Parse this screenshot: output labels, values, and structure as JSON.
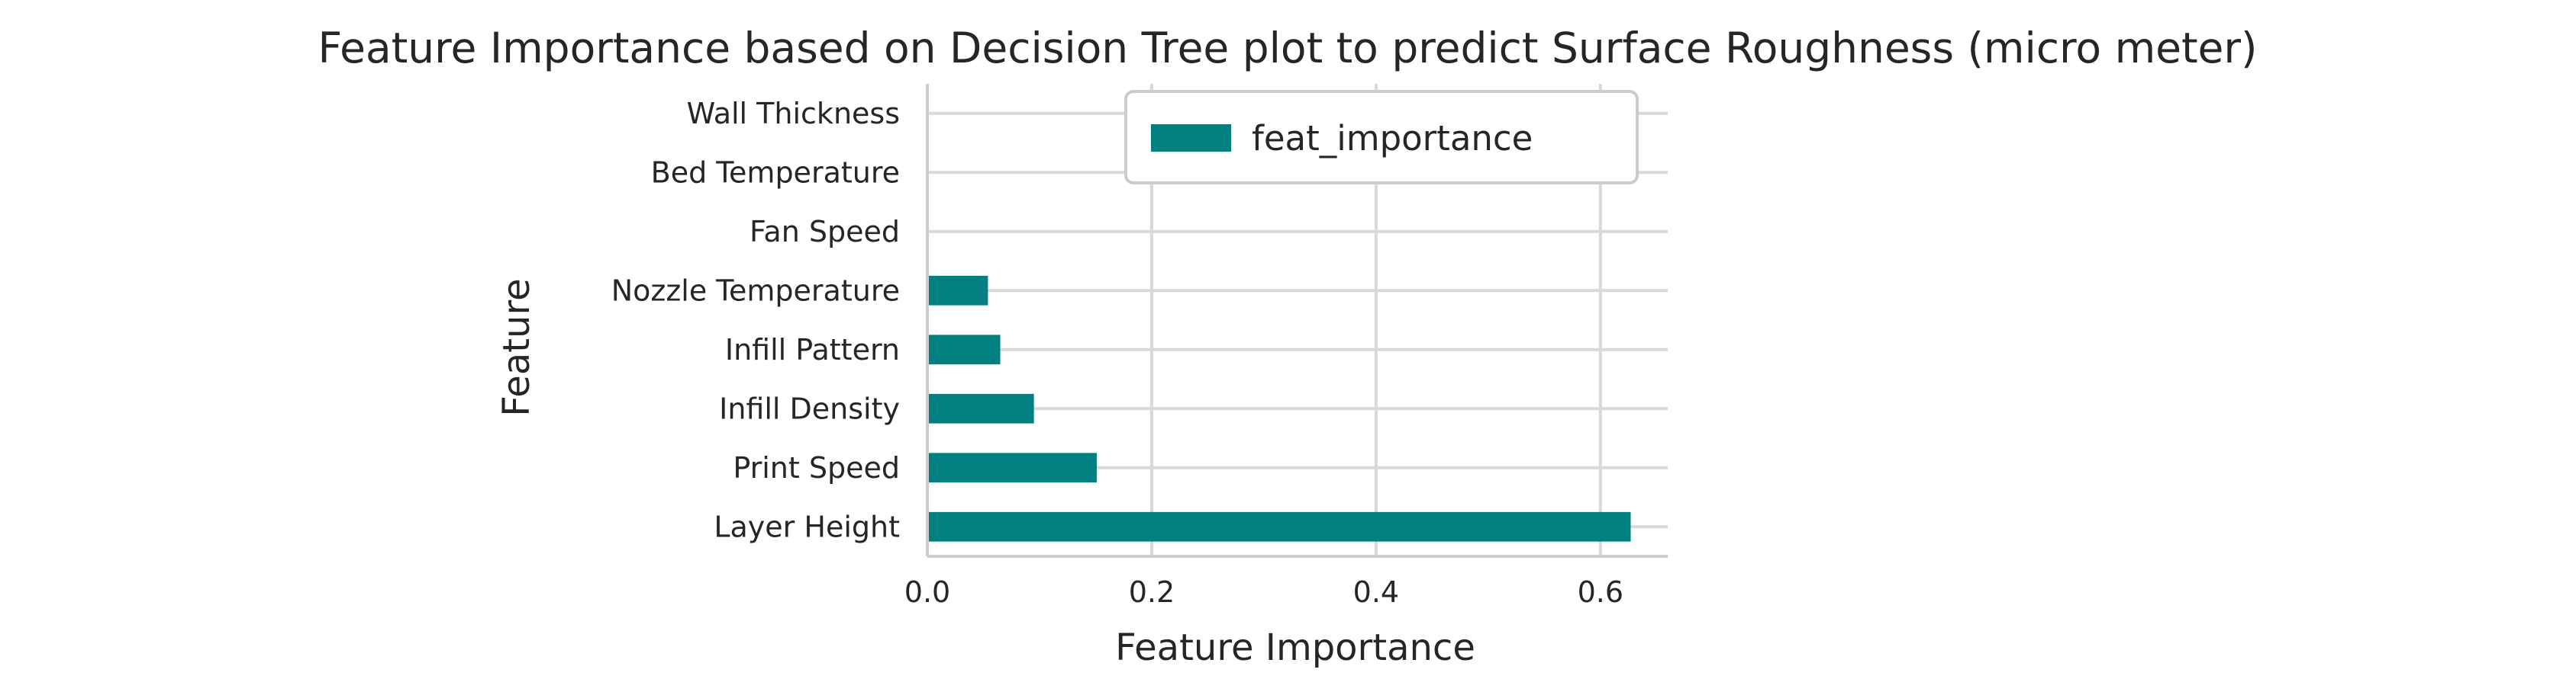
{
  "chart_data": {
    "type": "bar",
    "orientation": "horizontal",
    "title": "Feature Importance based on Decision Tree plot to predict Surface Roughness (micro meter)",
    "xlabel": "Feature Importance",
    "ylabel": "Feature",
    "categories": [
      "Layer Height",
      "Print Speed",
      "Infill Density",
      "Infill Pattern",
      "Nozzle Temperature",
      "Fan Speed",
      "Bed Temperature",
      "Wall Thickness"
    ],
    "series": [
      {
        "name": "feat_importance",
        "values": [
          0.627,
          0.151,
          0.095,
          0.065,
          0.054,
          0.0,
          0.0,
          0.0
        ],
        "color": "#008080"
      }
    ],
    "xlim": [
      0,
      0.66
    ],
    "xticks": [
      0.0,
      0.2,
      0.4,
      0.6
    ],
    "xtick_labels": [
      "0.0",
      "0.2",
      "0.4",
      "0.6"
    ],
    "grid": true,
    "legend_position": "upper right"
  }
}
